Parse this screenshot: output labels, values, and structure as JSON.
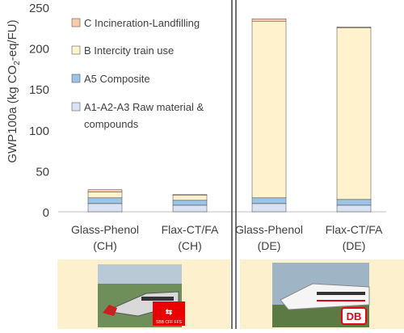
{
  "chart_data": {
    "type": "bar",
    "stacked": true,
    "ylabel_prefix": "GWP100a (kg CO",
    "ylabel_sub": "2",
    "ylabel_suffix": "-eq/FU)",
    "ylim": [
      0,
      250
    ],
    "yticks": [
      "0",
      "50",
      "100",
      "150",
      "200",
      "250"
    ],
    "ytick_values": [
      0,
      50,
      100,
      150,
      200,
      250
    ],
    "categories": [
      {
        "line1": "Glass-Phenol",
        "line2": "(CH)"
      },
      {
        "line1": "Flax-CT/FA",
        "line2": "(CH)"
      },
      {
        "line1": "Glass-Phenol",
        "line2": "(DE)"
      },
      {
        "line1": "Flax-CT/FA",
        "line2": "(DE)"
      }
    ],
    "series": [
      {
        "name": "A1-A2-A3 Raw material & compounds",
        "legend_line1": "A1-A2-A3 Raw material &",
        "legend_line2": "compounds",
        "color": "#dae3f3",
        "values": [
          10,
          8,
          10,
          8
        ]
      },
      {
        "name": "A5 Composite",
        "legend_line1": "A5 Composite",
        "legend_line2": "",
        "color": "#9dc3e6",
        "values": [
          7,
          6,
          7,
          7
        ]
      },
      {
        "name": "B Intercity train use",
        "legend_line1": "B Intercity train use",
        "legend_line2": "",
        "color": "#fff2cc",
        "values": [
          7,
          6,
          216,
          210
        ]
      },
      {
        "name": "C Incineration-Landfilling",
        "legend_line1": "C Incineration-Landfilling",
        "legend_line2": "",
        "color": "#f8cbad",
        "values": [
          3,
          1,
          3,
          1
        ]
      }
    ],
    "grid": false,
    "legend_position": "top-left",
    "panels": [
      {
        "logo_text": "SBB CFF FFS",
        "logo_color": "#eb0000"
      },
      {
        "logo_text": "DB",
        "logo_color": "#ec0016"
      }
    ]
  }
}
